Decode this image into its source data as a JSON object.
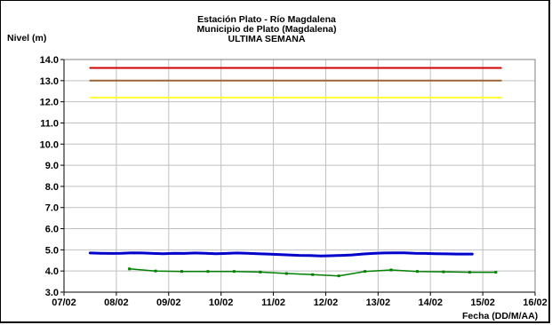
{
  "chart_data": {
    "type": "line",
    "title": [
      "Estación Plato - Río Magdalena",
      "Municipio de Plato (Magdalena)",
      "ULTIMA SEMANA"
    ],
    "ylabel": "Nivel (m)",
    "xlabel": "Fecha (DD/M/AA)",
    "ylim": [
      3.0,
      14.0
    ],
    "y_ticks": [
      "3.0",
      "4.0",
      "5.0",
      "6.0",
      "7.0",
      "8.0",
      "9.0",
      "10.0",
      "11.0",
      "12.0",
      "13.0",
      "14.0"
    ],
    "x_ticks": [
      "07/02",
      "08/02",
      "09/02",
      "10/02",
      "11/02",
      "12/02",
      "13/02",
      "14/02",
      "15/02",
      "16/02"
    ],
    "grid": true,
    "series": [
      {
        "color": "#cc0000",
        "style": "line",
        "x": [
          7.5,
          15.35
        ],
        "y": [
          13.6,
          13.6
        ]
      },
      {
        "color": "#996633",
        "style": "line",
        "x": [
          7.5,
          15.35
        ],
        "y": [
          13.0,
          13.0
        ]
      },
      {
        "color": "#ffff33",
        "style": "line",
        "x": [
          7.5,
          15.35
        ],
        "y": [
          12.2,
          12.2
        ]
      },
      {
        "color": "#0000cc",
        "style": "line-thick",
        "x": [
          7.5,
          7.7,
          7.9,
          8.1,
          8.3,
          8.5,
          8.7,
          8.9,
          9.1,
          9.3,
          9.5,
          9.7,
          9.9,
          10.1,
          10.3,
          10.5,
          10.7,
          10.9,
          11.1,
          11.3,
          11.5,
          11.7,
          11.9,
          12.1,
          12.3,
          12.5,
          12.7,
          12.9,
          13.1,
          13.3,
          13.5,
          13.7,
          13.9,
          14.1,
          14.3,
          14.5,
          14.8
        ],
        "y": [
          4.85,
          4.84,
          4.83,
          4.84,
          4.86,
          4.85,
          4.83,
          4.82,
          4.84,
          4.83,
          4.85,
          4.84,
          4.82,
          4.83,
          4.85,
          4.84,
          4.82,
          4.8,
          4.78,
          4.76,
          4.74,
          4.73,
          4.71,
          4.72,
          4.74,
          4.76,
          4.8,
          4.83,
          4.85,
          4.86,
          4.86,
          4.84,
          4.83,
          4.82,
          4.81,
          4.8,
          4.8
        ]
      },
      {
        "color": "#008000",
        "style": "line-markers",
        "x": [
          8.25,
          8.75,
          9.25,
          9.75,
          10.25,
          10.75,
          11.25,
          11.75,
          12.25,
          12.75,
          13.25,
          13.75,
          14.25,
          14.75,
          15.25
        ],
        "y": [
          4.1,
          4.0,
          3.98,
          3.98,
          3.98,
          3.95,
          3.88,
          3.83,
          3.77,
          3.98,
          4.05,
          3.98,
          3.96,
          3.94,
          3.94
        ]
      }
    ]
  }
}
